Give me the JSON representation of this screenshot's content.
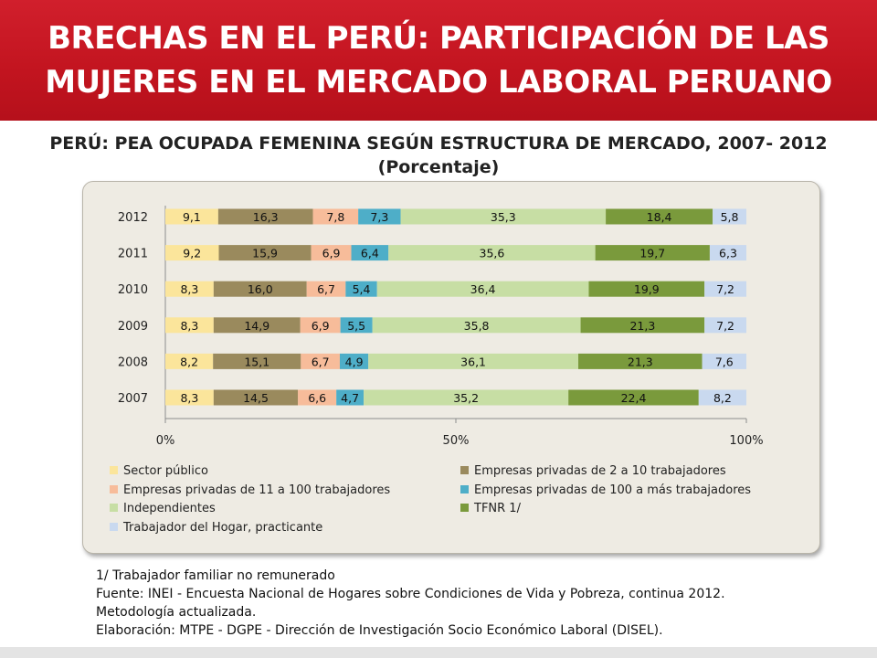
{
  "banner": {
    "title": "BRECHAS EN EL PERÚ: PARTICIPACIÓN DE LAS\nMUJERES EN EL MERCADO LABORAL PERUANO",
    "color": "#c8161f"
  },
  "chart_data": {
    "type": "bar",
    "orientation": "horizontal",
    "stacked": "100%",
    "title": "PERÚ: PEA OCUPADA FEMENINA SEGÚN ESTRUCTURA DE MERCADO, 2007- 2012",
    "subtitle": "(Porcentaje)",
    "categories": [
      "2012",
      "2011",
      "2010",
      "2009",
      "2008",
      "2007"
    ],
    "xticks": [
      "0%",
      "50%",
      "100%"
    ],
    "xlim": [
      0,
      100
    ],
    "grid": false,
    "legend_position": "bottom",
    "series": [
      {
        "name": "Sector público",
        "color": "#fbe59b",
        "values": [
          "9,1",
          "9,2",
          "8,3",
          "8,3",
          "8,2",
          "8,3"
        ]
      },
      {
        "name": "Empresas privadas de 2 a 10 trabajadores",
        "color": "#9a8a5d",
        "values": [
          "16,3",
          "15,9",
          "16,0",
          "14,9",
          "15,1",
          "14,5"
        ]
      },
      {
        "name": "Empresas privadas de 11 a 100 trabajadores",
        "color": "#f7bc9a",
        "values": [
          "7,8",
          "6,9",
          "6,7",
          "6,9",
          "6,7",
          "6,6"
        ]
      },
      {
        "name": "Empresas privadas de 100 a más trabajadores",
        "color": "#4eaec8",
        "values": [
          "7,3",
          "6,4",
          "5,4",
          "5,5",
          "4,9",
          "4,7"
        ]
      },
      {
        "name": "Independientes",
        "color": "#c7dea4",
        "values": [
          "35,3",
          "35,6",
          "36,4",
          "35,8",
          "36,1",
          "35,2"
        ]
      },
      {
        "name": "TFNR 1/",
        "color": "#7a9a3c",
        "values": [
          "18,4",
          "19,7",
          "19,9",
          "21,3",
          "21,3",
          "22,4"
        ]
      },
      {
        "name": "Trabajador del Hogar, practicante",
        "color": "#c9d9ef",
        "values": [
          "5,8",
          "6,3",
          "7,2",
          "7,2",
          "7,6",
          "8,2"
        ]
      }
    ]
  },
  "notes": [
    "1/ Trabajador familiar no remunerado",
    "Fuente: INEI - Encuesta Nacional de Hogares sobre Condiciones de Vida y Pobreza, continua 2012.",
    "Metodología actualizada.",
    "Elaboración: MTPE - DGPE - Dirección de Investigación Socio Económico Laboral (DISEL)."
  ]
}
